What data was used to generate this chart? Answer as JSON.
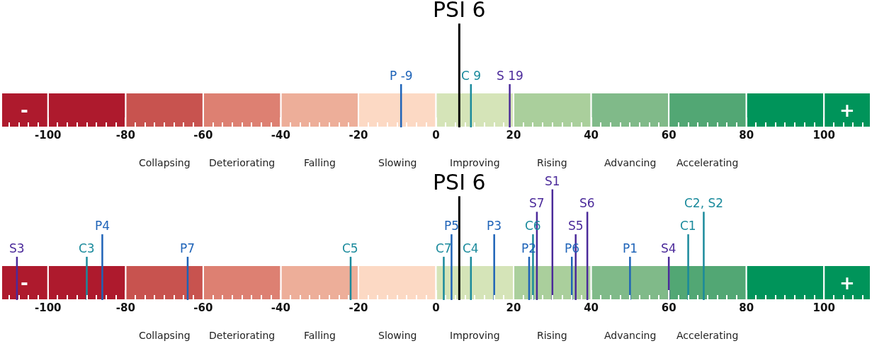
{
  "chart_data": [
    {
      "type": "bar",
      "orientation": "horizontal",
      "stacked": true,
      "categories": [
        null
      ],
      "xlim": [
        -112,
        112
      ],
      "xticks": [
        -100,
        -80,
        -60,
        -40,
        -20,
        0,
        20,
        40,
        60,
        80,
        100
      ],
      "series": [
        {
          "color": "#fcd9c4",
          "values": [
            -20
          ]
        },
        {
          "color": "#edae99",
          "values": [
            -20
          ]
        },
        {
          "color": "#dd8072",
          "values": [
            -20
          ]
        },
        {
          "color": "#c8534f",
          "values": [
            -20
          ]
        },
        {
          "color": "#ae1a2d",
          "values": [
            -20
          ]
        },
        {
          "name": "-",
          "color": "#ae1a2d",
          "values": [
            -12
          ]
        },
        {
          "color": "#d5e4b8",
          "values": [
            20
          ]
        },
        {
          "color": "#aacf9c",
          "values": [
            20
          ]
        },
        {
          "color": "#80ba89",
          "values": [
            20
          ]
        },
        {
          "color": "#52a774",
          "values": [
            20
          ]
        },
        {
          "color": "#00945a",
          "values": [
            20
          ]
        },
        {
          "name": "+",
          "color": "#00945a",
          "values": [
            12
          ]
        }
      ],
      "annotations": [
        "Collapsing",
        "Deteriorating",
        "Falling",
        "Slowing",
        "Improving",
        "Rising",
        "Advancing",
        "Accelerating"
      ],
      "ref_lines": [
        {
          "axis": "x",
          "value": 6,
          "label": "PSI 6",
          "color": "#000000"
        },
        {
          "axis": "x",
          "value": -9,
          "label": "P -9",
          "color": "#1e63b8"
        },
        {
          "axis": "x",
          "value": 9,
          "label": "C 9",
          "color": "#1a8a9c"
        },
        {
          "axis": "x",
          "value": 19,
          "label": "S 19",
          "color": "#4b2a9a"
        }
      ]
    },
    {
      "type": "bar",
      "orientation": "horizontal",
      "stacked": true,
      "categories": [
        null
      ],
      "xlim": [
        -112,
        112
      ],
      "xticks": [
        -100,
        -80,
        -60,
        -40,
        -20,
        0,
        20,
        40,
        60,
        80,
        100
      ],
      "series": [
        {
          "color": "#fcd9c4",
          "values": [
            -20
          ]
        },
        {
          "color": "#edae99",
          "values": [
            -20
          ]
        },
        {
          "color": "#dd8072",
          "values": [
            -20
          ]
        },
        {
          "color": "#c8534f",
          "values": [
            -20
          ]
        },
        {
          "color": "#ae1a2d",
          "values": [
            -20
          ]
        },
        {
          "name": "-",
          "color": "#ae1a2d",
          "values": [
            -12
          ]
        },
        {
          "color": "#d5e4b8",
          "values": [
            20
          ]
        },
        {
          "color": "#aacf9c",
          "values": [
            20
          ]
        },
        {
          "color": "#80ba89",
          "values": [
            20
          ]
        },
        {
          "color": "#52a774",
          "values": [
            20
          ]
        },
        {
          "color": "#00945a",
          "values": [
            20
          ]
        },
        {
          "name": "+",
          "color": "#00945a",
          "values": [
            12
          ]
        }
      ],
      "annotations": [
        "Collapsing",
        "Deteriorating",
        "Falling",
        "Slowing",
        "Improving",
        "Rising",
        "Advancing",
        "Accelerating"
      ],
      "ref_lines": [
        {
          "axis": "x",
          "value": 6,
          "label": "PSI 6",
          "color": "#000000"
        },
        {
          "axis": "x",
          "value": -108,
          "label": "S3",
          "color": "#4b2a9a"
        },
        {
          "axis": "x",
          "value": -90,
          "label": "C3",
          "color": "#1a8a9c"
        },
        {
          "axis": "x",
          "value": -86,
          "label": "P4",
          "color": "#1e63b8"
        },
        {
          "axis": "x",
          "value": -64,
          "label": "P7",
          "color": "#1e63b8"
        },
        {
          "axis": "x",
          "value": -22,
          "label": "C5",
          "color": "#1a8a9c"
        },
        {
          "axis": "x",
          "value": 2,
          "label": "C7",
          "color": "#1a8a9c"
        },
        {
          "axis": "x",
          "value": 4,
          "label": "P5",
          "color": "#1e63b8"
        },
        {
          "axis": "x",
          "value": 9,
          "label": "C4",
          "color": "#1a8a9c"
        },
        {
          "axis": "x",
          "value": 15,
          "label": "P3",
          "color": "#1e63b8"
        },
        {
          "axis": "x",
          "value": 24,
          "label": "P2",
          "color": "#1e63b8"
        },
        {
          "axis": "x",
          "value": 25,
          "label": "C6",
          "color": "#1a8a9c"
        },
        {
          "axis": "x",
          "value": 26,
          "label": "S7",
          "color": "#4b2a9a"
        },
        {
          "axis": "x",
          "value": 30,
          "label": "S1",
          "color": "#4b2a9a"
        },
        {
          "axis": "x",
          "value": 35,
          "label": "P6",
          "color": "#1e63b8"
        },
        {
          "axis": "x",
          "value": 36,
          "label": "S5",
          "color": "#4b2a9a"
        },
        {
          "axis": "x",
          "value": 39,
          "label": "S6",
          "color": "#4b2a9a"
        },
        {
          "axis": "x",
          "value": 50,
          "label": "P1",
          "color": "#1e63b8"
        },
        {
          "axis": "x",
          "value": 60,
          "label": "S4",
          "color": "#4b2a9a"
        },
        {
          "axis": "x",
          "value": 65,
          "label": "C1",
          "color": "#1a8a9c"
        },
        {
          "axis": "x",
          "value": 69,
          "label": "C2, S2",
          "color": "#1a8a9c"
        }
      ]
    }
  ]
}
